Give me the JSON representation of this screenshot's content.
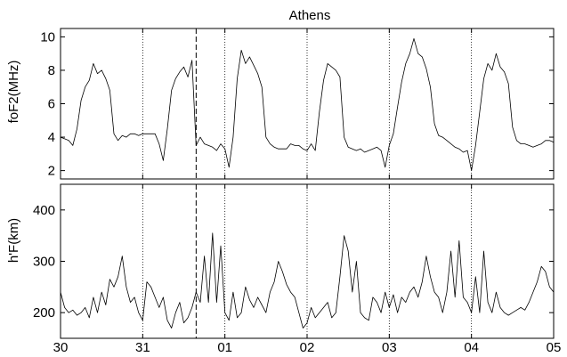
{
  "chart_data": [
    {
      "type": "line",
      "title": "Athens",
      "ylabel": "foF2(MHz)",
      "xlabel": "",
      "ylim": [
        1.5,
        10.5
      ],
      "yticks": [
        2,
        4,
        6,
        8,
        10
      ],
      "xlim": [
        30,
        36
      ],
      "xticks": [
        30,
        31,
        32,
        33,
        34,
        35,
        36
      ],
      "xtick_labels": [
        "30",
        "31",
        "01",
        "02",
        "03",
        "04",
        "05"
      ],
      "grid": "vertical dotted at each day",
      "event_marker_x": 31.65,
      "series": [
        {
          "x": [
            30.0,
            30.05,
            30.1,
            30.15,
            30.2,
            30.25,
            30.3,
            30.35,
            30.4,
            30.45,
            30.5,
            30.55,
            30.6,
            30.65,
            30.7,
            30.75,
            30.8,
            30.85,
            30.9,
            30.95,
            31.0,
            31.05,
            31.1,
            31.15,
            31.2,
            31.25,
            31.3,
            31.35,
            31.4,
            31.45,
            31.5,
            31.55,
            31.6,
            31.65,
            31.7,
            31.75,
            31.8,
            31.85,
            31.9,
            31.95,
            32.0,
            32.05,
            32.1,
            32.15,
            32.2,
            32.25,
            32.3,
            32.35,
            32.4,
            32.45,
            32.5,
            32.55,
            32.6,
            32.65,
            32.7,
            32.75,
            32.8,
            32.85,
            32.9,
            32.95,
            33.0,
            33.05,
            33.1,
            33.15,
            33.2,
            33.25,
            33.3,
            33.35,
            33.4,
            33.45,
            33.5,
            33.55,
            33.6,
            33.65,
            33.7,
            33.75,
            33.8,
            33.85,
            33.9,
            33.95,
            34.0,
            34.05,
            34.1,
            34.15,
            34.2,
            34.25,
            34.3,
            34.35,
            34.4,
            34.45,
            34.5,
            34.55,
            34.6,
            34.65,
            34.7,
            34.75,
            34.8,
            34.85,
            34.9,
            34.95,
            35.0,
            35.05,
            35.1,
            35.15,
            35.2,
            35.25,
            35.3,
            35.35,
            35.4,
            35.45,
            35.5,
            35.55,
            35.6,
            35.65,
            35.7,
            35.75,
            35.8,
            35.85,
            35.9,
            35.95,
            36.0
          ],
          "y": [
            4.0,
            3.9,
            3.8,
            3.5,
            4.5,
            6.2,
            7.0,
            7.4,
            8.4,
            7.8,
            8.0,
            7.5,
            6.8,
            4.2,
            3.8,
            4.1,
            4.0,
            4.2,
            4.2,
            4.1,
            4.2,
            4.2,
            4.2,
            4.2,
            3.6,
            2.6,
            4.5,
            6.8,
            7.5,
            7.9,
            8.2,
            7.6,
            8.6,
            3.5,
            4.0,
            3.6,
            3.5,
            3.4,
            3.2,
            3.6,
            3.3,
            2.2,
            4.0,
            7.5,
            9.2,
            8.4,
            8.8,
            8.3,
            7.8,
            7.0,
            4.0,
            3.6,
            3.4,
            3.3,
            3.3,
            3.3,
            3.6,
            3.5,
            3.5,
            3.3,
            3.2,
            3.6,
            3.2,
            5.5,
            7.4,
            8.4,
            8.2,
            8.0,
            7.6,
            4.0,
            3.4,
            3.3,
            3.2,
            3.3,
            3.1,
            3.2,
            3.3,
            3.4,
            3.2,
            2.2,
            3.5,
            4.2,
            5.8,
            7.3,
            8.4,
            9.0,
            9.9,
            9.0,
            8.8,
            8.1,
            7.0,
            4.8,
            4.1,
            4.0,
            3.8,
            3.6,
            3.4,
            3.3,
            3.1,
            3.2,
            2.0,
            3.5,
            5.5,
            7.5,
            8.4,
            8.0,
            9.0,
            8.2,
            7.9,
            7.2,
            4.6,
            3.8,
            3.6,
            3.6,
            3.5,
            3.4,
            3.5,
            3.6,
            3.8,
            3.8,
            3.7
          ]
        }
      ]
    },
    {
      "type": "line",
      "ylabel": "h'F(km)",
      "xlabel": "",
      "ylim": [
        150,
        450
      ],
      "yticks": [
        200,
        300,
        400
      ],
      "xlim": [
        30,
        36
      ],
      "xticks": [
        30,
        31,
        32,
        33,
        34,
        35,
        36
      ],
      "xtick_labels": [
        "30",
        "31",
        "01",
        "02",
        "03",
        "04",
        "05"
      ],
      "grid": "vertical dotted at each day",
      "event_marker_x": 31.65,
      "series": [
        {
          "x": [
            30.0,
            30.05,
            30.1,
            30.15,
            30.2,
            30.25,
            30.3,
            30.35,
            30.4,
            30.45,
            30.5,
            30.55,
            30.6,
            30.65,
            30.7,
            30.75,
            30.8,
            30.85,
            30.9,
            30.95,
            31.0,
            31.05,
            31.1,
            31.15,
            31.2,
            31.25,
            31.3,
            31.35,
            31.4,
            31.45,
            31.5,
            31.55,
            31.6,
            31.65,
            31.7,
            31.75,
            31.8,
            31.85,
            31.9,
            31.95,
            32.0,
            32.05,
            32.1,
            32.15,
            32.2,
            32.25,
            32.3,
            32.35,
            32.4,
            32.45,
            32.5,
            32.55,
            32.6,
            32.65,
            32.7,
            32.75,
            32.8,
            32.85,
            32.9,
            32.95,
            33.0,
            33.05,
            33.1,
            33.15,
            33.2,
            33.25,
            33.3,
            33.35,
            33.4,
            33.45,
            33.5,
            33.55,
            33.6,
            33.65,
            33.7,
            33.75,
            33.8,
            33.85,
            33.9,
            33.95,
            34.0,
            34.05,
            34.1,
            34.15,
            34.2,
            34.25,
            34.3,
            34.35,
            34.4,
            34.45,
            34.5,
            34.55,
            34.6,
            34.65,
            34.7,
            34.75,
            34.8,
            34.85,
            34.9,
            34.95,
            35.0,
            35.05,
            35.1,
            35.15,
            35.2,
            35.25,
            35.3,
            35.35,
            35.4,
            35.45,
            35.5,
            35.55,
            35.6,
            35.65,
            35.7,
            35.75,
            35.8,
            35.85,
            35.9,
            35.95,
            36.0
          ],
          "y": [
            240,
            210,
            200,
            205,
            195,
            200,
            210,
            190,
            230,
            200,
            240,
            215,
            265,
            250,
            270,
            310,
            250,
            220,
            230,
            200,
            185,
            260,
            250,
            230,
            210,
            230,
            185,
            170,
            200,
            220,
            180,
            190,
            210,
            240,
            220,
            310,
            220,
            355,
            220,
            330,
            200,
            185,
            240,
            190,
            200,
            250,
            225,
            210,
            230,
            215,
            200,
            240,
            260,
            300,
            280,
            255,
            240,
            230,
            200,
            170,
            180,
            210,
            190,
            200,
            210,
            220,
            190,
            200,
            270,
            350,
            320,
            240,
            300,
            200,
            190,
            185,
            230,
            220,
            200,
            240,
            210,
            235,
            200,
            230,
            220,
            240,
            250,
            230,
            260,
            310,
            270,
            240,
            230,
            200,
            240,
            320,
            230,
            340,
            230,
            220,
            200,
            270,
            200,
            320,
            220,
            200,
            240,
            210,
            200,
            195,
            200,
            205,
            210,
            205,
            220,
            240,
            260,
            290,
            280,
            250,
            240
          ]
        }
      ]
    }
  ]
}
